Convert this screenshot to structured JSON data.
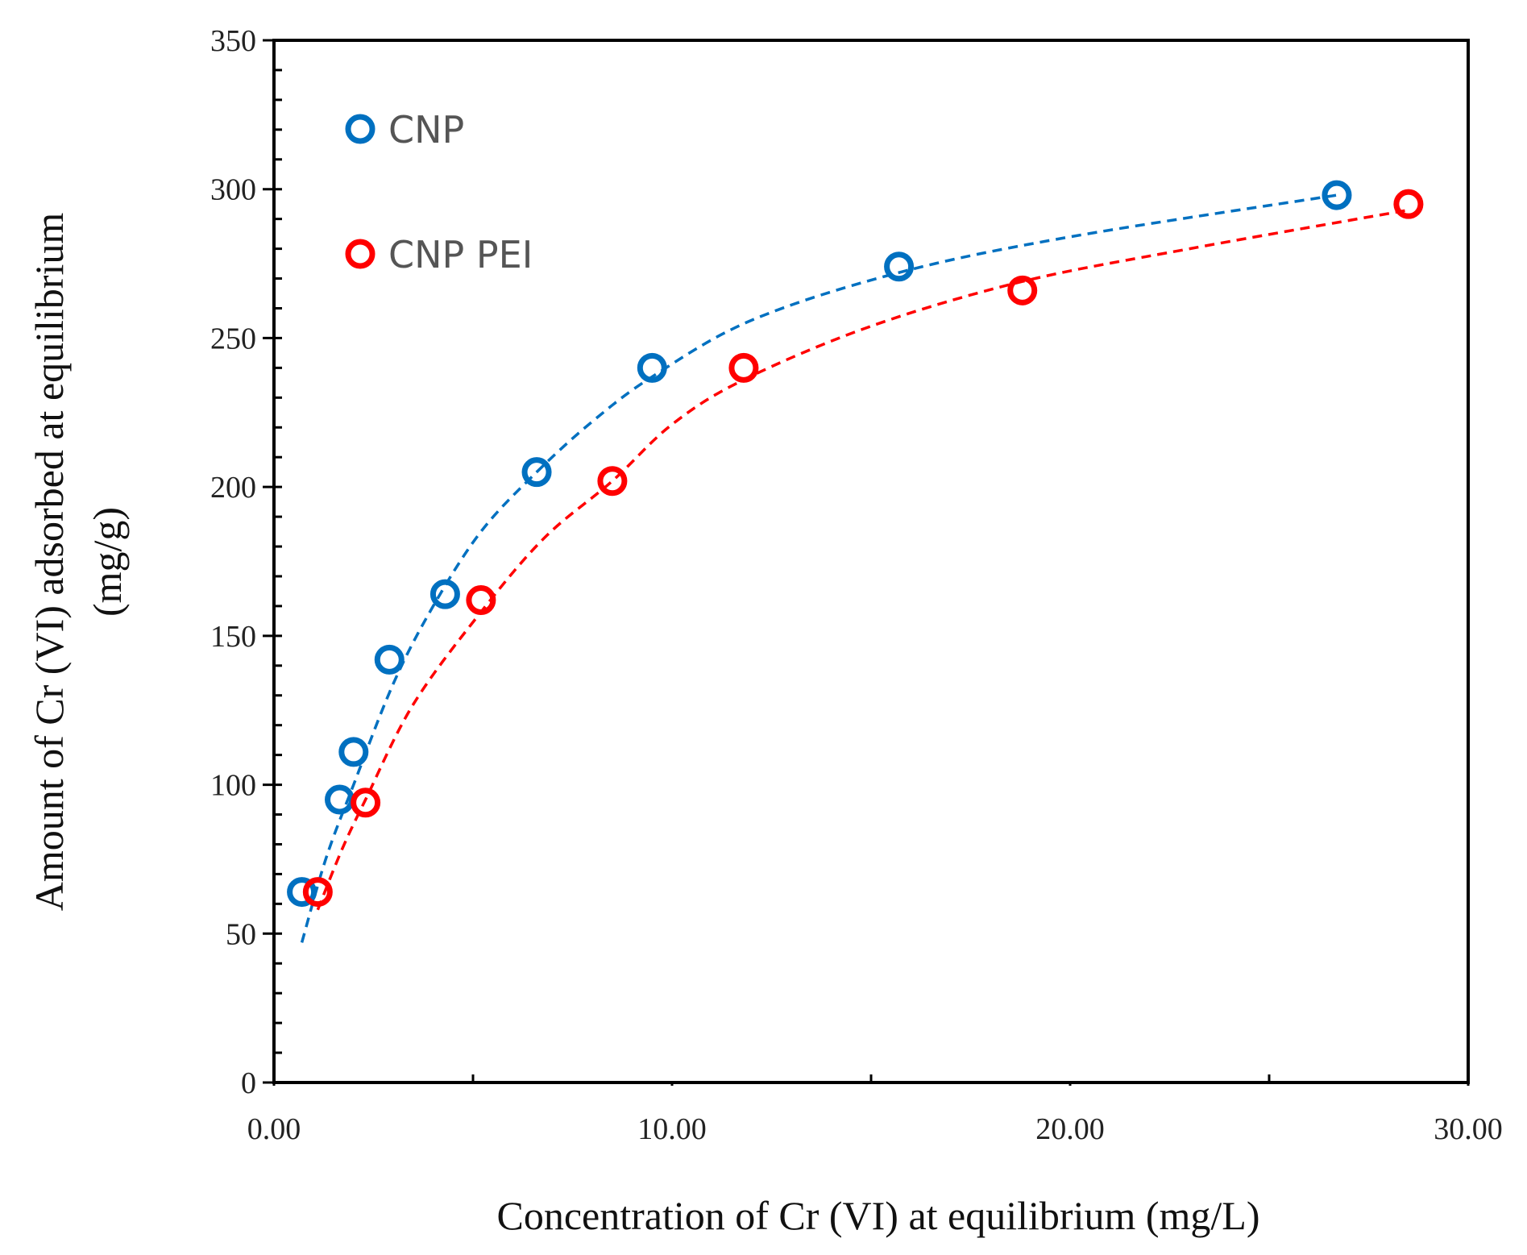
{
  "chart_data": {
    "type": "scatter",
    "title": "",
    "xlabel": "Concentration of Cr (VI) at equilibrium (mg/L)",
    "ylabel": [
      "Amount of Cr (VI) adsorbed at equilibrium",
      "(mg/g)"
    ],
    "xlim": [
      0,
      30
    ],
    "ylim": [
      0,
      350
    ],
    "xticks": [
      "0.00",
      "10.00",
      "20.00",
      "30.00"
    ],
    "xtick_values": [
      0,
      10,
      20,
      30
    ],
    "yticks": [
      "0",
      "50",
      "100",
      "150",
      "200",
      "250",
      "300",
      "350"
    ],
    "ytick_values": [
      0,
      50,
      100,
      150,
      200,
      250,
      300,
      350
    ],
    "grid": false,
    "legend_position": "top-left",
    "series": [
      {
        "name": "CNP",
        "color": "#0070C0",
        "marker": "open-circle",
        "x": [
          0.7,
          1.65,
          2.0,
          2.9,
          4.3,
          6.6,
          9.5,
          15.7,
          26.7
        ],
        "y": [
          64,
          95,
          111,
          142,
          164,
          205,
          240,
          274,
          298
        ],
        "trendline": {
          "style": "dashed",
          "x": [
            0.7,
            1.3,
            2.0,
            3.0,
            4.0,
            5.2,
            6.6,
            8.0,
            9.5,
            12.0,
            15.7,
            20.0,
            26.7
          ],
          "y": [
            47,
            75,
            100,
            134,
            160,
            185,
            205,
            222,
            237,
            256,
            272,
            284,
            298
          ]
        }
      },
      {
        "name": "CNP PEI",
        "color": "#FF0000",
        "marker": "open-circle",
        "x": [
          1.1,
          2.3,
          5.2,
          8.5,
          11.8,
          18.8,
          28.5
        ],
        "y": [
          64,
          94,
          162,
          202,
          240,
          266,
          295
        ],
        "trendline": {
          "style": "dashed",
          "x": [
            1.1,
            1.7,
            2.3,
            3.5,
            5.2,
            6.8,
            8.5,
            10.0,
            11.8,
            15.0,
            18.8,
            23.0,
            28.5
          ],
          "y": [
            58,
            78,
            95,
            127,
            158,
            183,
            202,
            221,
            236,
            254,
            269,
            280,
            293
          ]
        }
      }
    ]
  }
}
